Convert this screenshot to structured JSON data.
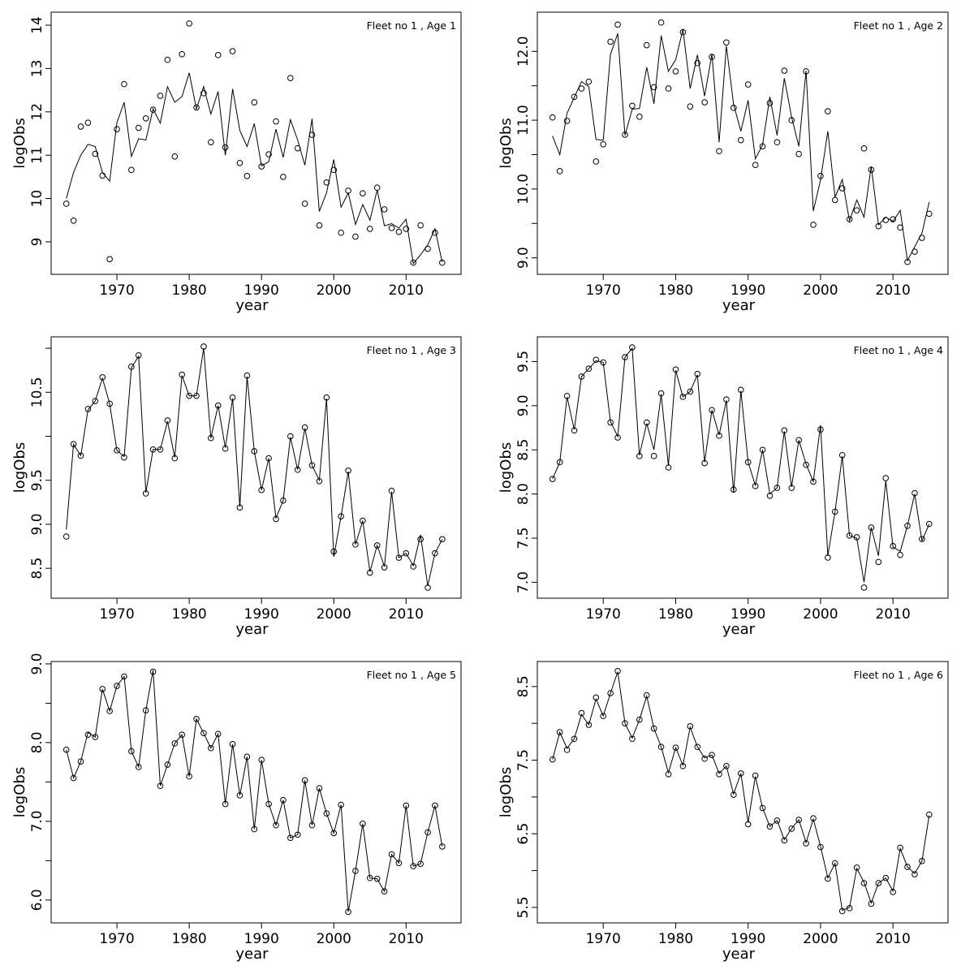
{
  "chart_data": [
    {
      "type": "line",
      "title": "Fleet no 1 , Age 1",
      "xlabel": "year",
      "ylabel": "logObs",
      "xlim": [
        1960.9,
        2017.6
      ],
      "ylim": [
        8.25,
        14.3
      ],
      "xticks": [
        1970,
        1980,
        1990,
        2000,
        2010
      ],
      "yticks": [
        9,
        10,
        11,
        12,
        13,
        14
      ],
      "yticklabels": [
        "9",
        "10",
        "11",
        "12",
        "13",
        "14"
      ],
      "grid": false,
      "x_start": 1963,
      "observed_points": [
        9.88,
        9.49,
        11.66,
        11.75,
        11.03,
        10.53,
        8.6,
        11.6,
        12.64,
        10.66,
        11.63,
        11.85,
        12.05,
        12.37,
        13.2,
        10.97,
        13.33,
        14.04,
        12.1,
        12.43,
        11.3,
        13.31,
        11.18,
        13.4,
        10.82,
        10.52,
        12.22,
        10.74,
        11.02,
        11.78,
        10.5,
        12.78,
        11.16,
        9.88,
        11.47,
        9.38,
        10.37,
        10.66,
        9.21,
        10.18,
        9.12,
        10.12,
        9.3,
        10.25,
        9.75,
        9.32,
        9.23,
        9.3,
        8.52,
        9.38,
        8.84,
        9.21,
        8.52
      ],
      "fitted_line": [
        10.0,
        10.6,
        11.0,
        11.25,
        11.2,
        10.6,
        10.4,
        11.75,
        12.22,
        10.97,
        11.38,
        11.35,
        12.07,
        11.74,
        12.58,
        12.22,
        12.35,
        12.9,
        12.07,
        12.58,
        11.95,
        12.47,
        11.0,
        12.53,
        11.57,
        11.2,
        11.73,
        10.75,
        10.85,
        11.6,
        10.95,
        11.82,
        11.35,
        10.77,
        11.84,
        9.7,
        10.13,
        10.9,
        9.8,
        10.13,
        9.4,
        9.86,
        9.5,
        10.2,
        9.37,
        9.42,
        9.32,
        9.52,
        8.5,
        8.7,
        8.93,
        9.3,
        8.53
      ]
    },
    {
      "type": "line",
      "title": "Fleet no 1 , Age 2",
      "xlabel": "year",
      "ylabel": "logObs",
      "xlim": [
        1960.9,
        2017.6
      ],
      "ylim": [
        8.76,
        12.57
      ],
      "xticks": [
        1970,
        1980,
        1990,
        2000,
        2010
      ],
      "yticks": [
        9.0,
        9.5,
        10.0,
        10.5,
        11.0,
        11.5,
        12.0
      ],
      "yticklabels": [
        "9.0",
        "",
        "10.0",
        "",
        "11.0",
        "",
        "12.0"
      ],
      "grid": false,
      "x_start": 1963,
      "observed_points": [
        11.04,
        10.26,
        10.99,
        11.34,
        11.46,
        11.56,
        10.4,
        10.65,
        12.14,
        12.39,
        10.79,
        11.21,
        11.05,
        12.09,
        11.48,
        12.42,
        11.46,
        11.71,
        12.28,
        11.2,
        11.83,
        11.26,
        11.92,
        10.55,
        12.13,
        11.18,
        10.71,
        11.52,
        10.35,
        10.62,
        11.25,
        10.68,
        11.72,
        11.0,
        10.51,
        11.71,
        9.48,
        10.19,
        11.13,
        9.84,
        10.01,
        9.56,
        9.69,
        10.59,
        10.28,
        9.46,
        9.55,
        9.56,
        9.44,
        8.94,
        9.09,
        9.29,
        9.64
      ],
      "fitted_line": [
        10.77,
        10.5,
        11.1,
        11.33,
        11.56,
        11.49,
        10.72,
        10.71,
        11.96,
        12.26,
        10.78,
        11.16,
        11.17,
        11.77,
        11.24,
        12.23,
        11.71,
        11.88,
        12.32,
        11.46,
        11.95,
        11.35,
        11.96,
        10.68,
        12.08,
        11.23,
        10.84,
        11.29,
        10.44,
        10.64,
        11.34,
        10.78,
        11.61,
        11.05,
        10.62,
        11.72,
        9.68,
        10.13,
        10.84,
        9.88,
        10.14,
        9.54,
        9.84,
        9.59,
        10.33,
        9.48,
        9.59,
        9.53,
        9.69,
        8.96,
        9.16,
        9.36,
        9.81
      ]
    },
    {
      "type": "line",
      "title": "Fleet no 1 , Age 3",
      "xlabel": "year",
      "ylabel": "logObs",
      "xlim": [
        1960.9,
        2017.6
      ],
      "ylim": [
        8.16,
        11.13
      ],
      "xticks": [
        1970,
        1980,
        1990,
        2000,
        2010
      ],
      "yticks": [
        8.5,
        9.0,
        9.5,
        10.0,
        10.5,
        11.0
      ],
      "yticklabels": [
        "8.5",
        "9.0",
        "9.5",
        "",
        "10.5",
        ""
      ],
      "grid": false,
      "x_start": 1963,
      "observed_points": [
        8.86,
        9.91,
        9.78,
        10.31,
        10.4,
        10.67,
        10.37,
        9.84,
        9.76,
        10.79,
        10.92,
        9.35,
        9.85,
        9.85,
        10.18,
        9.75,
        10.7,
        10.46,
        10.46,
        11.02,
        9.98,
        10.35,
        9.86,
        10.44,
        9.19,
        10.69,
        9.83,
        9.39,
        9.75,
        9.06,
        9.27,
        10.0,
        9.62,
        10.1,
        9.67,
        9.49,
        10.44,
        8.69,
        9.09,
        9.61,
        8.77,
        9.04,
        8.45,
        8.76,
        8.51,
        9.38,
        8.62,
        8.67,
        8.52,
        8.83,
        8.28,
        8.67,
        8.83
      ],
      "fitted_line": [
        8.94,
        9.91,
        9.78,
        10.3,
        10.4,
        10.66,
        10.37,
        9.84,
        9.77,
        10.78,
        10.91,
        9.36,
        9.85,
        9.85,
        10.17,
        9.76,
        10.69,
        10.46,
        10.46,
        11.0,
        9.98,
        10.35,
        9.87,
        10.43,
        9.2,
        10.68,
        9.83,
        9.39,
        9.75,
        9.07,
        9.27,
        9.99,
        9.62,
        10.09,
        9.67,
        9.5,
        10.43,
        8.63,
        9.09,
        9.6,
        8.77,
        9.04,
        8.46,
        8.76,
        8.52,
        9.37,
        8.62,
        8.67,
        8.53,
        8.88,
        8.3,
        8.67,
        8.83
      ]
    },
    {
      "type": "line",
      "title": "Fleet no 1 , Age 4",
      "xlabel": "year",
      "ylabel": "logObs",
      "xlim": [
        1960.9,
        2017.6
      ],
      "ylim": [
        6.82,
        9.78
      ],
      "xticks": [
        1970,
        1980,
        1990,
        2000,
        2010
      ],
      "yticks": [
        7.0,
        7.5,
        8.0,
        8.5,
        9.0,
        9.5
      ],
      "yticklabels": [
        "7.0",
        "7.5",
        "8.0",
        "8.5",
        "9.0",
        "9.5"
      ],
      "grid": false,
      "x_start": 1963,
      "observed_points": [
        8.17,
        8.36,
        9.11,
        8.72,
        9.33,
        9.42,
        9.52,
        9.49,
        8.81,
        8.64,
        9.55,
        9.66,
        8.43,
        8.81,
        8.43,
        9.14,
        8.3,
        9.41,
        9.1,
        9.16,
        9.36,
        8.35,
        8.95,
        8.66,
        9.07,
        8.05,
        9.18,
        8.36,
        8.09,
        8.5,
        7.98,
        8.07,
        8.72,
        8.07,
        8.61,
        8.33,
        8.14,
        8.73,
        7.28,
        7.8,
        8.44,
        7.53,
        7.51,
        6.94,
        7.62,
        7.23,
        8.18,
        7.41,
        7.31,
        7.64,
        8.01,
        7.49,
        7.66
      ],
      "fitted_line": [
        8.17,
        8.36,
        9.1,
        8.73,
        9.33,
        9.42,
        9.51,
        9.49,
        8.82,
        8.65,
        9.55,
        9.65,
        8.44,
        8.8,
        8.5,
        9.13,
        8.32,
        9.4,
        9.1,
        9.16,
        9.35,
        8.36,
        8.95,
        8.67,
        9.06,
        8.02,
        9.17,
        8.36,
        8.1,
        8.5,
        8.0,
        8.07,
        8.71,
        8.08,
        8.61,
        8.34,
        8.14,
        8.78,
        7.3,
        7.8,
        8.43,
        7.53,
        7.5,
        7.0,
        7.62,
        7.3,
        8.15,
        7.4,
        7.35,
        7.64,
        8.0,
        7.47,
        7.66
      ]
    },
    {
      "type": "line",
      "title": "Fleet no 1 , Age 5",
      "xlabel": "year",
      "ylabel": "logObs",
      "xlim": [
        1960.9,
        2017.6
      ],
      "ylim": [
        5.71,
        9.03
      ],
      "xticks": [
        1970,
        1980,
        1990,
        2000,
        2010
      ],
      "yticks": [
        6.0,
        6.5,
        7.0,
        7.5,
        8.0,
        8.5,
        9.0
      ],
      "yticklabels": [
        "6.0",
        "",
        "7.0",
        "",
        "8.0",
        "",
        "9.0"
      ],
      "grid": false,
      "x_start": 1963,
      "observed_points": [
        7.91,
        7.55,
        7.76,
        8.1,
        8.07,
        8.68,
        8.4,
        8.72,
        8.84,
        7.89,
        7.69,
        8.41,
        8.9,
        7.45,
        7.72,
        7.99,
        8.1,
        7.57,
        8.3,
        8.12,
        7.93,
        8.11,
        7.22,
        7.98,
        7.33,
        7.82,
        6.9,
        7.78,
        7.22,
        6.95,
        7.27,
        6.79,
        6.83,
        7.52,
        6.95,
        7.42,
        7.1,
        6.85,
        7.21,
        5.85,
        6.37,
        6.97,
        6.28,
        6.27,
        6.11,
        6.58,
        6.47,
        7.2,
        6.43,
        6.46,
        6.86,
        7.2,
        6.68
      ],
      "fitted_line": [
        7.91,
        7.55,
        7.76,
        8.13,
        8.07,
        8.68,
        8.4,
        8.72,
        8.84,
        7.89,
        7.69,
        8.41,
        8.92,
        7.45,
        7.72,
        7.99,
        8.1,
        7.57,
        8.3,
        8.12,
        7.93,
        8.11,
        7.22,
        7.98,
        7.33,
        7.82,
        6.9,
        7.78,
        7.22,
        6.95,
        7.27,
        6.79,
        6.83,
        7.52,
        6.95,
        7.42,
        7.1,
        6.85,
        7.21,
        5.85,
        6.37,
        6.97,
        6.28,
        6.27,
        6.11,
        6.58,
        6.47,
        7.2,
        6.43,
        6.46,
        6.86,
        7.2,
        6.68
      ]
    },
    {
      "type": "line",
      "title": "Fleet no 1 , Age 6",
      "xlabel": "year",
      "ylabel": "logObs",
      "xlim": [
        1960.9,
        2017.6
      ],
      "ylim": [
        5.29,
        8.84
      ],
      "xticks": [
        1970,
        1980,
        1990,
        2000,
        2010
      ],
      "yticks": [
        5.5,
        6.0,
        6.5,
        7.0,
        7.5,
        8.0,
        8.5
      ],
      "yticklabels": [
        "5.5",
        "",
        "6.5",
        "",
        "7.5",
        "",
        "8.5"
      ],
      "grid": false,
      "x_start": 1963,
      "observed_points": [
        7.51,
        7.88,
        7.64,
        7.79,
        8.14,
        7.98,
        8.35,
        8.1,
        8.41,
        8.71,
        8.0,
        7.79,
        8.05,
        8.38,
        7.93,
        7.68,
        7.31,
        7.67,
        7.42,
        7.96,
        7.68,
        7.52,
        7.57,
        7.31,
        7.42,
        7.03,
        7.32,
        6.63,
        7.29,
        6.85,
        6.6,
        6.68,
        6.41,
        6.57,
        6.69,
        6.37,
        6.71,
        6.32,
        5.89,
        6.1,
        5.45,
        5.49,
        6.04,
        5.83,
        5.55,
        5.83,
        5.9,
        5.71,
        6.31,
        6.05,
        5.95,
        6.13,
        6.76
      ],
      "fitted_line": [
        7.51,
        7.88,
        7.66,
        7.79,
        8.12,
        7.98,
        8.33,
        8.1,
        8.41,
        8.7,
        8.0,
        7.8,
        8.05,
        8.37,
        7.93,
        7.68,
        7.33,
        7.67,
        7.43,
        7.95,
        7.68,
        7.53,
        7.57,
        7.32,
        7.42,
        7.04,
        7.32,
        6.65,
        7.28,
        6.85,
        6.6,
        6.68,
        6.42,
        6.57,
        6.69,
        6.38,
        6.7,
        6.33,
        5.9,
        6.1,
        5.46,
        5.5,
        6.03,
        5.84,
        5.56,
        5.83,
        5.9,
        5.72,
        6.3,
        6.05,
        5.96,
        6.13,
        6.75
      ]
    }
  ]
}
